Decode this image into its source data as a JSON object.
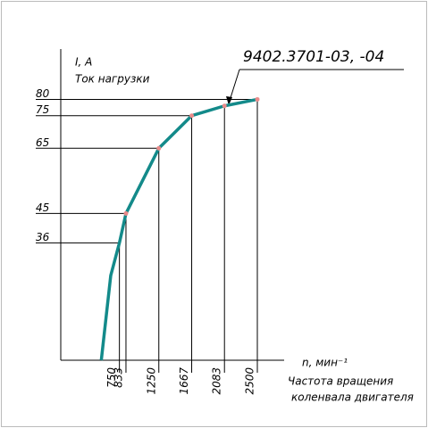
{
  "chart_data": {
    "type": "line",
    "y_label": "I, A",
    "y_subtitle": "Ток нагрузки",
    "x_label": "n, мин⁻¹",
    "x_title": [
      "Частота вращения",
      "коленвала двигателя"
    ],
    "annotation": "9402.3701-03, -04",
    "x": [
      520,
      640,
      750,
      833,
      1250,
      1667,
      2083,
      2500
    ],
    "series": [
      {
        "name": "I",
        "color": "#138a8a",
        "values": [
          0,
          26,
          36,
          45,
          65,
          75,
          78,
          80
        ]
      }
    ],
    "marker_color": "#e88a8a",
    "xlim": [
      0,
      2840
    ],
    "ylim": [
      0,
      95
    ],
    "xticks": [
      750,
      833,
      1250,
      1667,
      2083,
      2500
    ],
    "yticks": [
      36,
      45,
      65,
      75,
      80
    ],
    "grid": true
  }
}
